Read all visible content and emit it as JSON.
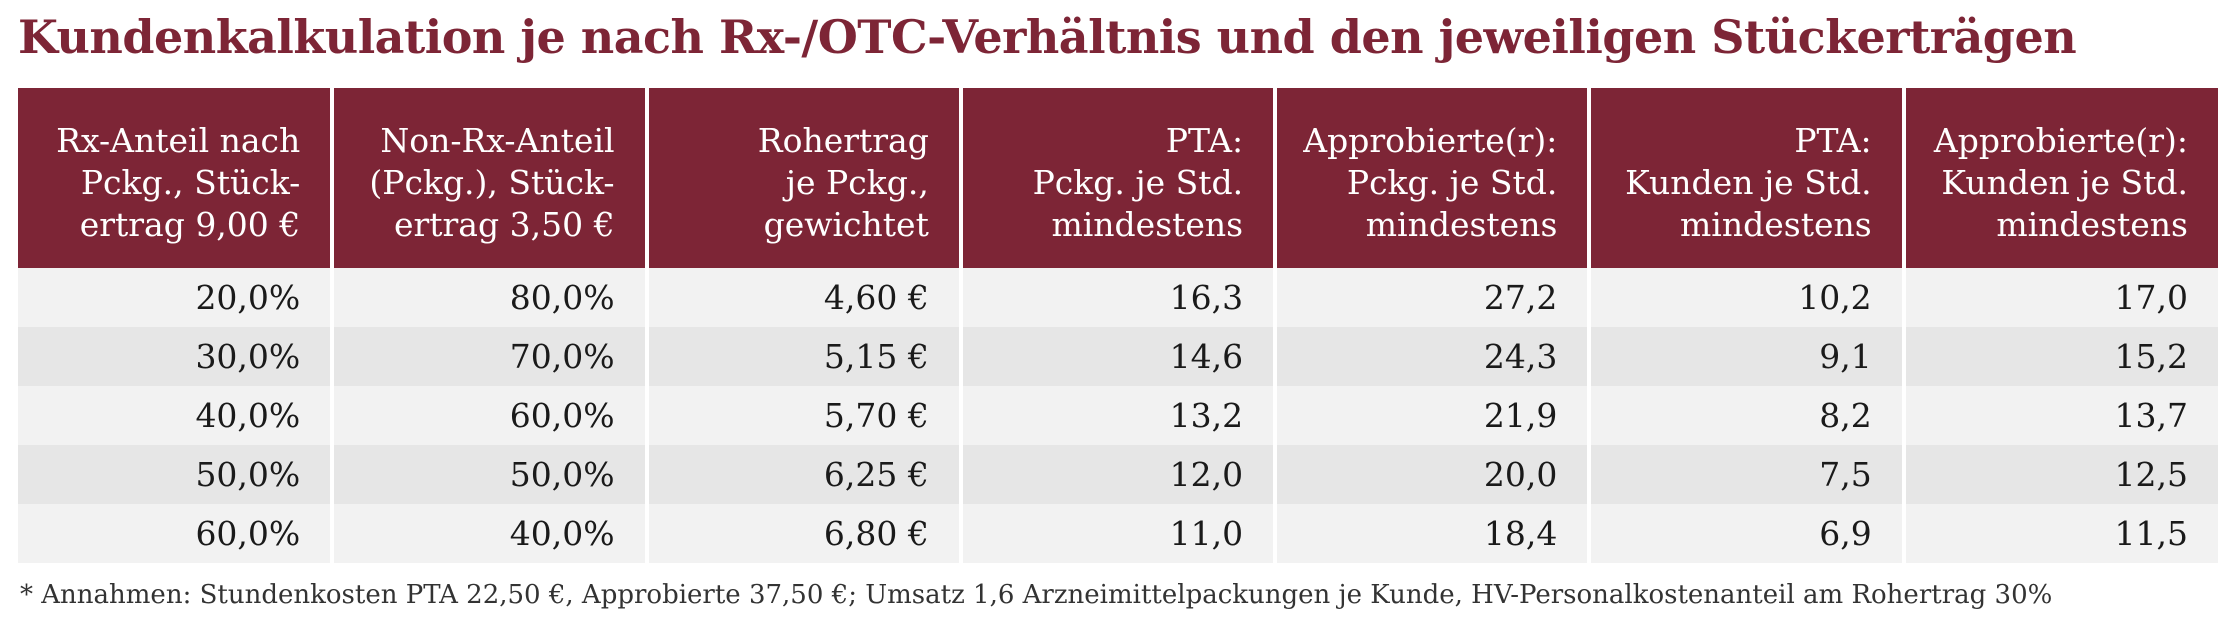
{
  "title": "Kundenkalkulation je nach Rx-/OTC-Verhältnis und den jeweiligen Stückerträgen",
  "colors": {
    "header_bg": "#7d2536",
    "title": "#7d2536",
    "row_light": "#f2f2f2",
    "row_dark": "#e6e6e6"
  },
  "chart_data": {
    "type": "table",
    "columns": [
      "Rx-Anteil nach\nPckg., Stück-\nertrag 9,00 €",
      "Non-Rx-Anteil\n(Pckg.), Stück-\nertrag 3,50 €",
      "Rohertrag\nje Pckg.,\ngewichtet",
      "PTA:\nPckg. je Std.\nmindestens",
      "Approbierte(r):\nPckg. je Std.\nmindestens",
      "PTA:\nKunden je Std.\nmindestens",
      "Approbierte(r):\nKunden je Std.\nmindestens"
    ],
    "rows": [
      [
        "20,0%",
        "80,0%",
        "4,60 €",
        "16,3",
        "27,2",
        "10,2",
        "17,0"
      ],
      [
        "30,0%",
        "70,0%",
        "5,15 €",
        "14,6",
        "24,3",
        "9,1",
        "15,2"
      ],
      [
        "40,0%",
        "60,0%",
        "5,70 €",
        "13,2",
        "21,9",
        "8,2",
        "13,7"
      ],
      [
        "50,0%",
        "50,0%",
        "6,25 €",
        "12,0",
        "20,0",
        "7,5",
        "12,5"
      ],
      [
        "60,0%",
        "40,0%",
        "6,80 €",
        "11,0",
        "18,4",
        "6,9",
        "11,5"
      ]
    ]
  },
  "footnote": "* Annahmen: Stundenkosten PTA 22,50 €, Approbierte 37,50 €; Umsatz 1,6 Arzneimittelpackungen je Kunde, HV-Personalkostenanteil am Rohertrag 30%"
}
